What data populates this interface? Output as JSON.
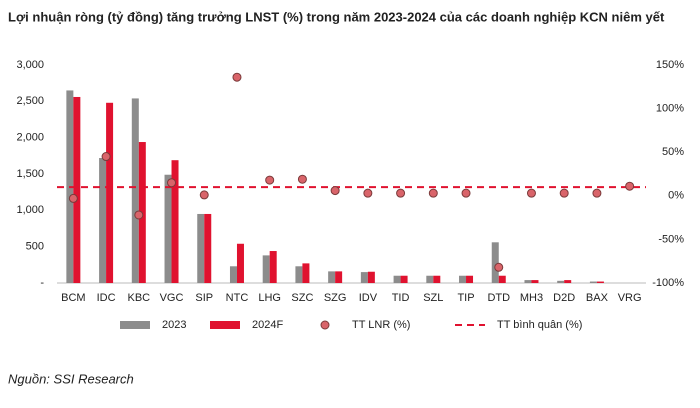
{
  "chart_data": {
    "type": "bar",
    "title": "Lợi nhuận ròng (tỷ đồng) tăng trưởng LNST (%) trong năm 2023-2024 của các doanh nghiệp KCN niêm yết",
    "source": "Nguồn: SSI Research",
    "categories": [
      "BCM",
      "IDC",
      "KBC",
      "VGC",
      "SIP",
      "NTC",
      "LHG",
      "SZC",
      "SZG",
      "IDV",
      "TID",
      "SZL",
      "TIP",
      "DTD",
      "MH3",
      "D2D",
      "BAX",
      "VRG"
    ],
    "series": [
      {
        "name": "2023",
        "color": "#8c8c8c",
        "values": [
          2650,
          1720,
          2540,
          1490,
          950,
          230,
          380,
          230,
          160,
          150,
          100,
          100,
          100,
          560,
          40,
          30,
          20,
          null
        ]
      },
      {
        "name": "2024F",
        "color": "#e0122f",
        "values": [
          2560,
          2480,
          1940,
          1690,
          950,
          540,
          440,
          270,
          160,
          155,
          100,
          100,
          100,
          100,
          40,
          40,
          20,
          null
        ]
      },
      {
        "name": "TT LNR (%)",
        "color": "#d9646a",
        "type": "scatter",
        "axis": "y2",
        "values": [
          -3,
          45,
          -22,
          15,
          1,
          136,
          18,
          19,
          6,
          3,
          3,
          3,
          3,
          -82,
          3,
          3,
          3,
          11
        ]
      }
    ],
    "average": {
      "name": "TT bình quân (%)",
      "color": "#e0122f",
      "axis": "y2",
      "value": 10
    },
    "ylim": [
      0,
      3000
    ],
    "yticks": [
      {
        "value": 0,
        "label": "-"
      },
      500,
      {
        "value": 1000,
        "label": "1,000"
      },
      {
        "value": 1500,
        "label": "1,500"
      },
      {
        "value": 2000,
        "label": "2,000"
      },
      {
        "value": 2500,
        "label": "2,500"
      },
      {
        "value": 3000,
        "label": "3,000"
      }
    ],
    "y2lim": [
      -100,
      150
    ],
    "y2ticks": [
      {
        "value": -100,
        "label": "-100%"
      },
      {
        "value": -50,
        "label": "-50%"
      },
      {
        "value": 0,
        "label": "0%"
      },
      {
        "value": 50,
        "label": "50%"
      },
      {
        "value": 100,
        "label": "100%"
      },
      {
        "value": 150,
        "label": "150%"
      }
    ],
    "grid": false
  }
}
